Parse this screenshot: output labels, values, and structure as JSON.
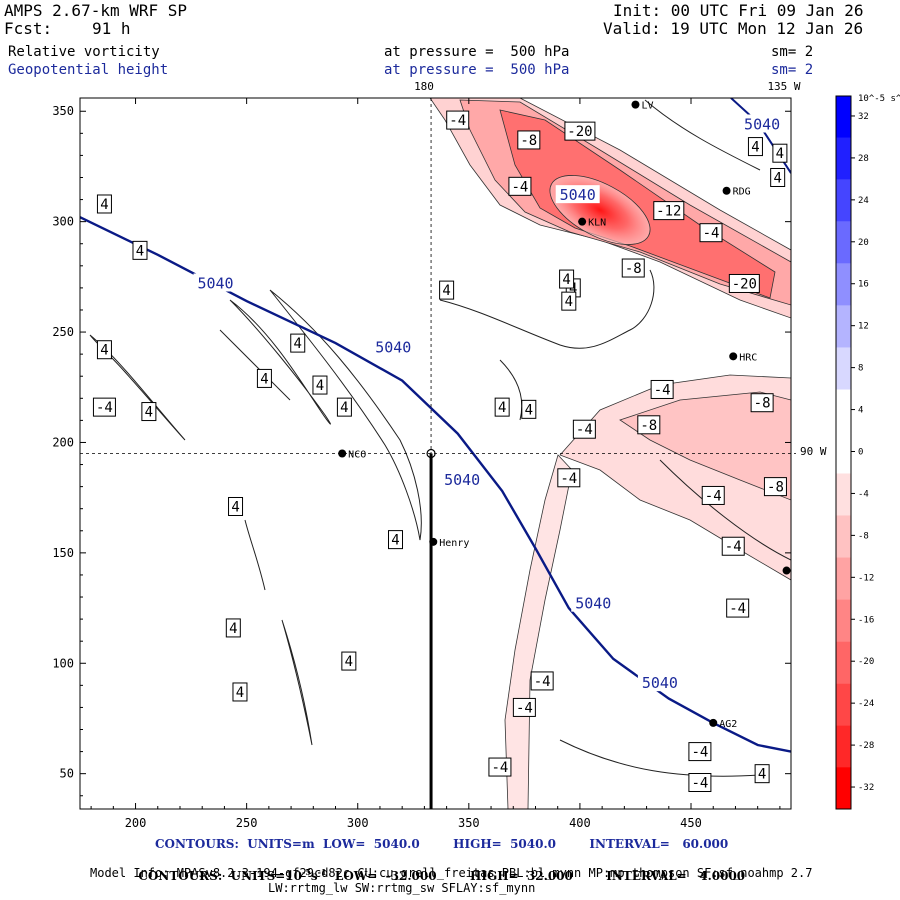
{
  "header": {
    "model": "AMPS 2.67-km WRF SP",
    "fcst_label": "Fcst:",
    "fcst_value": "91 h",
    "init": "Init: 00 UTC Fri 09 Jan 26",
    "valid": "Valid: 19 UTC Mon 12 Jan 26",
    "field1": "Relative vorticity",
    "field1_level": "at pressure =  500 hPa",
    "field1_sm": "sm= 2",
    "field2": "Geopotential height",
    "field2_level": "at pressure =  500 hPa",
    "field2_sm": "sm= 2"
  },
  "chart_data": {
    "type": "contour",
    "fields": [
      {
        "name": "Relative vorticity",
        "units": "10^-5 s^-1",
        "low": -32.0,
        "high": 32.0,
        "interval": 4.0
      },
      {
        "name": "Geopotential height",
        "units": "m",
        "low": 5040.0,
        "high": 5040.0,
        "interval": 60.0
      }
    ],
    "xlim": [
      175,
      495
    ],
    "ylim": [
      34,
      356
    ],
    "xticks": [
      200,
      250,
      300,
      350,
      400,
      450
    ],
    "yticks": [
      50,
      100,
      150,
      200,
      250,
      300,
      350
    ],
    "top_labels": {
      "lon180": "180",
      "lon135w": "135 W"
    },
    "right_label": "90 W",
    "crosshair": {
      "x": 333,
      "y": 195
    },
    "section_line": {
      "x": 333,
      "y_from": 195,
      "y_to": 34
    },
    "height_contour": {
      "value": 5040,
      "label": "5040",
      "points": [
        [
          175,
          302
        ],
        [
          210,
          285
        ],
        [
          250,
          264
        ],
        [
          290,
          245
        ],
        [
          320,
          228
        ],
        [
          345,
          204
        ],
        [
          365,
          178
        ],
        [
          380,
          152
        ],
        [
          395,
          125
        ],
        [
          415,
          102
        ],
        [
          440,
          84
        ],
        [
          460,
          73
        ],
        [
          480,
          63
        ],
        [
          495,
          60
        ]
      ],
      "label_positions": [
        [
          236,
          272
        ],
        [
          316,
          243
        ],
        [
          347,
          183
        ],
        [
          406,
          127
        ],
        [
          436,
          91
        ],
        [
          482,
          344
        ],
        [
          399,
          312
        ]
      ]
    },
    "stations": [
      {
        "name": "LV",
        "x": 425,
        "y": 353
      },
      {
        "name": "RDG",
        "x": 466,
        "y": 314
      },
      {
        "name": "KLN",
        "x": 401,
        "y": 300
      },
      {
        "name": "HRC",
        "x": 469,
        "y": 239
      },
      {
        "name": "NCO",
        "x": 293,
        "y": 195
      },
      {
        "name": "Henry",
        "x": 334,
        "y": 155
      },
      {
        "name": "AG2",
        "x": 460,
        "y": 73
      },
      {
        "name": "",
        "x": 493,
        "y": 142
      }
    ],
    "vorticity_labels": [
      {
        "t": "-4",
        "x": 345,
        "y": 346
      },
      {
        "t": "-8",
        "x": 377,
        "y": 337
      },
      {
        "t": "-20",
        "x": 400,
        "y": 341
      },
      {
        "t": "-4",
        "x": 373,
        "y": 316
      },
      {
        "t": "-12",
        "x": 440,
        "y": 305
      },
      {
        "t": "-4",
        "x": 459,
        "y": 295
      },
      {
        "t": "-8",
        "x": 424,
        "y": 279
      },
      {
        "t": "-20",
        "x": 474,
        "y": 272
      },
      {
        "t": "4",
        "x": 186,
        "y": 308
      },
      {
        "t": "4",
        "x": 202,
        "y": 287
      },
      {
        "t": "4",
        "x": 186,
        "y": 242
      },
      {
        "t": "-4",
        "x": 186,
        "y": 216
      },
      {
        "t": "4",
        "x": 206,
        "y": 214
      },
      {
        "t": "4",
        "x": 258,
        "y": 229
      },
      {
        "t": "4",
        "x": 273,
        "y": 245
      },
      {
        "t": "4",
        "x": 283,
        "y": 226
      },
      {
        "t": "4",
        "x": 294,
        "y": 216
      },
      {
        "t": "4",
        "x": 340,
        "y": 269
      },
      {
        "t": "4",
        "x": 397,
        "y": 270
      },
      {
        "t": "4",
        "x": 394,
        "y": 274
      },
      {
        "t": "4",
        "x": 395,
        "y": 264
      },
      {
        "t": "4",
        "x": 365,
        "y": 216
      },
      {
        "t": "4",
        "x": 377,
        "y": 215
      },
      {
        "t": "-4",
        "x": 437,
        "y": 224
      },
      {
        "t": "-8",
        "x": 482,
        "y": 218
      },
      {
        "t": "-4",
        "x": 402,
        "y": 206
      },
      {
        "t": "-8",
        "x": 431,
        "y": 208
      },
      {
        "t": "-4",
        "x": 395,
        "y": 184
      },
      {
        "t": "-8",
        "x": 488,
        "y": 180
      },
      {
        "t": "-4",
        "x": 460,
        "y": 176
      },
      {
        "t": "-4",
        "x": 469,
        "y": 153
      },
      {
        "t": "-4",
        "x": 471,
        "y": 125
      },
      {
        "t": "4",
        "x": 245,
        "y": 171
      },
      {
        "t": "4",
        "x": 317,
        "y": 156
      },
      {
        "t": "4",
        "x": 244,
        "y": 116
      },
      {
        "t": "4",
        "x": 247,
        "y": 87
      },
      {
        "t": "4",
        "x": 296,
        "y": 101
      },
      {
        "t": "-4",
        "x": 383,
        "y": 92
      },
      {
        "t": "-4",
        "x": 375,
        "y": 80
      },
      {
        "t": "-4",
        "x": 364,
        "y": 53
      },
      {
        "t": "-4",
        "x": 454,
        "y": 60
      },
      {
        "t": "-4",
        "x": 454,
        "y": 46
      },
      {
        "t": "4",
        "x": 482,
        "y": 50
      },
      {
        "t": "4",
        "x": 479,
        "y": 334
      },
      {
        "t": "4",
        "x": 490,
        "y": 331
      },
      {
        "t": "4",
        "x": 489,
        "y": 320
      }
    ],
    "colorbar": {
      "units_label": "10^-5 s^-1",
      "ticks": [
        "32",
        "28",
        "24",
        "20",
        "16",
        "12",
        "8",
        "4",
        "0",
        "-4",
        "-8",
        "-12",
        "-16",
        "-20",
        "-24",
        "-28",
        "-32"
      ],
      "colors": [
        "#0000ff",
        "#2020ff",
        "#4545ff",
        "#6a6aff",
        "#8f8fff",
        "#b4b4ff",
        "#d8d8ff",
        "#ffffff",
        "#ffffff",
        "#ffe0e0",
        "#ffc2c2",
        "#ffa3a3",
        "#ff8585",
        "#ff6666",
        "#ff4747",
        "#ff2828",
        "#ff0000"
      ]
    }
  },
  "footer": {
    "contours1": "CONTOURS:  UNITS=m  LOW=  5040.0        HIGH=  5040.0        INTERVAL=   60.000",
    "contours2_a": "CONTOURS:  UNITS=10",
    "contours2_b": "s",
    "contours2_c": "  LOW=  -32.000        HIGH=  32.000        INTERVAL=   4.0000",
    "contours2_exp1": "-5",
    "contours2_exp2": "-1",
    "model_info": "Model Info: MPASv8.2.3-194-gf29cd82c CU:cu_grell_freitas PBL:bl_mynn MP:mp_thompson SF:sf_noahmp 2.7",
    "model_info2": "LW:rrtmg_lw SW:rrtmg_sw SFLAY:sf_mynn"
  }
}
